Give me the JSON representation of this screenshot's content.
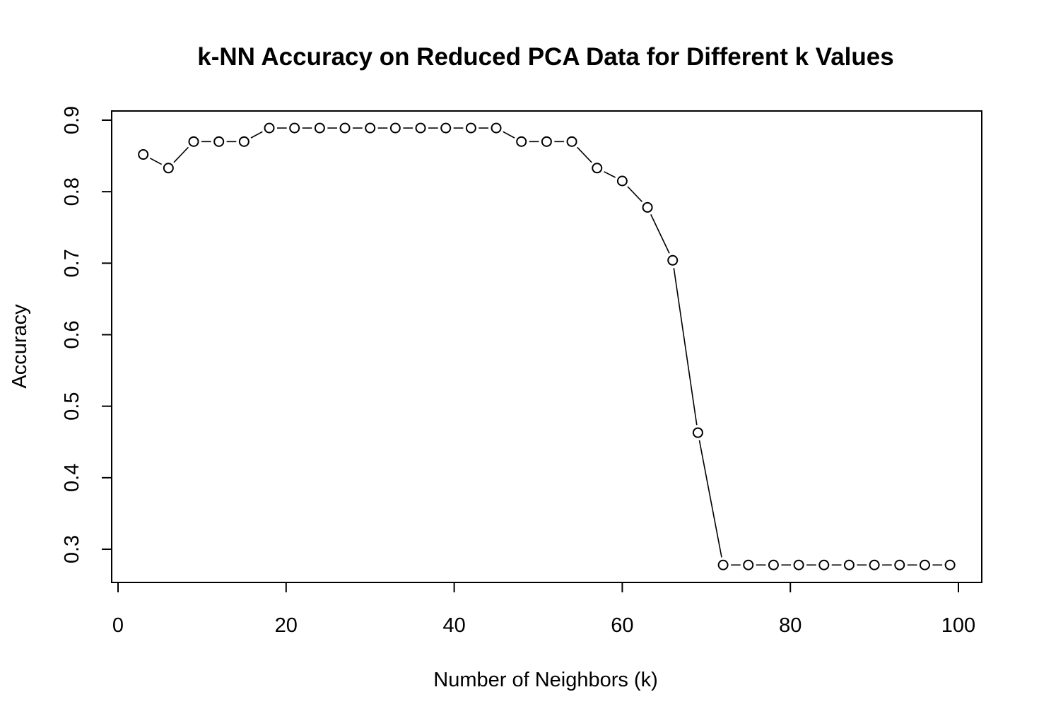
{
  "chart_data": {
    "type": "line",
    "title": "k-NN Accuracy on Reduced PCA Data for Different k Values",
    "xlabel": "Number of Neighbors (k)",
    "ylabel": "Accuracy",
    "xlim": [
      0,
      100
    ],
    "ylim": [
      0.3,
      0.9
    ],
    "x_ticks": [
      0,
      20,
      40,
      60,
      80,
      100
    ],
    "y_ticks": [
      0.3,
      0.4,
      0.5,
      0.6,
      0.7,
      0.8,
      0.9
    ],
    "x_tick_labels": [
      "0",
      "20",
      "40",
      "60",
      "80",
      "100"
    ],
    "y_tick_labels": [
      "0.3",
      "0.4",
      "0.5",
      "0.6",
      "0.7",
      "0.8",
      "0.9"
    ],
    "grid": false,
    "plot_style": "points connected by line segments (open circle markers)",
    "marker": "open-circle",
    "series": [
      {
        "x": [
          3,
          6,
          9,
          12,
          15,
          18,
          21,
          24,
          27,
          30,
          33,
          36,
          39,
          42,
          45,
          48,
          51,
          54,
          57,
          60,
          63,
          66,
          69,
          72,
          75,
          78,
          81,
          84,
          87,
          90,
          93,
          96,
          99
        ],
        "values": [
          0.852,
          0.833,
          0.87,
          0.87,
          0.87,
          0.889,
          0.889,
          0.889,
          0.889,
          0.889,
          0.889,
          0.889,
          0.889,
          0.889,
          0.889,
          0.87,
          0.87,
          0.87,
          0.833,
          0.815,
          0.778,
          0.704,
          0.463,
          0.278,
          0.278,
          0.278,
          0.278,
          0.278,
          0.278,
          0.278,
          0.278,
          0.278,
          0.278
        ]
      }
    ],
    "colors": {
      "line": "#000000",
      "marker_stroke": "#000000",
      "marker_fill": "#ffffff",
      "background": "#ffffff"
    }
  }
}
